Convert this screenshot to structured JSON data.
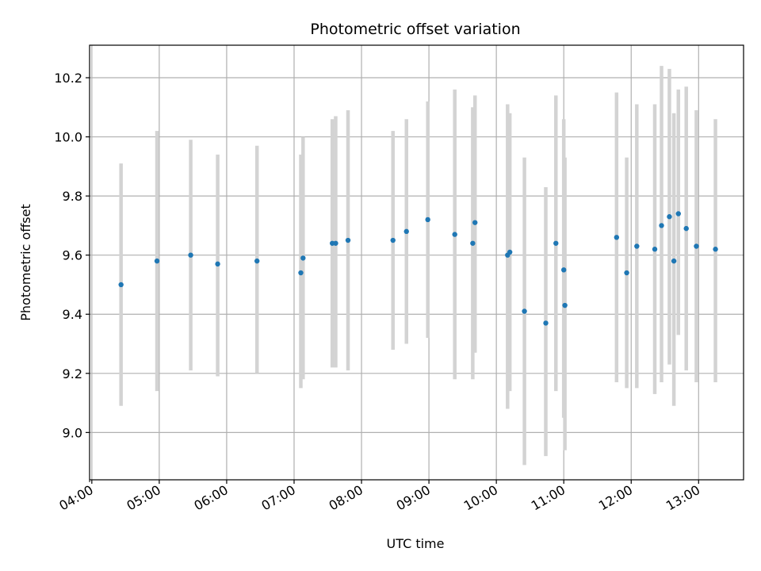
{
  "chart_data": {
    "type": "scatter",
    "title": "Photometric offset variation",
    "xlabel": "UTC time",
    "ylabel": "Photometric offset",
    "xlim": [
      "03:58",
      "13:40"
    ],
    "ylim": [
      8.84,
      10.31
    ],
    "grid": true,
    "legend": "none",
    "x_ticks": [
      "04:00",
      "05:00",
      "06:00",
      "07:00",
      "08:00",
      "09:00",
      "10:00",
      "11:00",
      "12:00",
      "13:00"
    ],
    "y_ticks": [
      9.0,
      9.2,
      9.4,
      9.6,
      9.8,
      10.0,
      10.2
    ],
    "y_tick_labels": [
      "9.0",
      "9.2",
      "9.4",
      "9.6",
      "9.8",
      "10.0",
      "10.2"
    ],
    "colors": {
      "point": "#1f77b4",
      "errorbar": "#d3d3d3",
      "grid": "#b0b0b0"
    },
    "points": [
      {
        "x": "04:26",
        "y": 9.5,
        "err_low": 9.09,
        "err_high": 9.91
      },
      {
        "x": "04:58",
        "y": 9.58,
        "err_low": 9.14,
        "err_high": 10.02
      },
      {
        "x": "05:28",
        "y": 9.6,
        "err_low": 9.21,
        "err_high": 9.99
      },
      {
        "x": "05:52",
        "y": 9.57,
        "err_low": 9.19,
        "err_high": 9.94
      },
      {
        "x": "06:27",
        "y": 9.58,
        "err_low": 9.2,
        "err_high": 9.97
      },
      {
        "x": "07:06",
        "y": 9.54,
        "err_low": 9.15,
        "err_high": 9.94
      },
      {
        "x": "07:08",
        "y": 9.59,
        "err_low": 9.18,
        "err_high": 10.0
      },
      {
        "x": "07:34",
        "y": 9.64,
        "err_low": 9.22,
        "err_high": 10.06
      },
      {
        "x": "07:37",
        "y": 9.64,
        "err_low": 9.22,
        "err_high": 10.07
      },
      {
        "x": "07:48",
        "y": 9.65,
        "err_low": 9.21,
        "err_high": 10.09
      },
      {
        "x": "08:28",
        "y": 9.65,
        "err_low": 9.28,
        "err_high": 10.02
      },
      {
        "x": "08:40",
        "y": 9.68,
        "err_low": 9.3,
        "err_high": 10.06
      },
      {
        "x": "08:59",
        "y": 9.72,
        "err_low": 9.32,
        "err_high": 10.12
      },
      {
        "x": "09:23",
        "y": 9.67,
        "err_low": 9.18,
        "err_high": 10.16
      },
      {
        "x": "09:39",
        "y": 9.64,
        "err_low": 9.18,
        "err_high": 10.1
      },
      {
        "x": "09:41",
        "y": 9.71,
        "err_low": 9.27,
        "err_high": 10.14
      },
      {
        "x": "10:10",
        "y": 9.6,
        "err_low": 9.08,
        "err_high": 10.11
      },
      {
        "x": "10:12",
        "y": 9.61,
        "err_low": 9.14,
        "err_high": 10.08
      },
      {
        "x": "10:25",
        "y": 9.41,
        "err_low": 8.89,
        "err_high": 9.93
      },
      {
        "x": "10:44",
        "y": 9.37,
        "err_low": 8.92,
        "err_high": 9.83
      },
      {
        "x": "10:53",
        "y": 9.64,
        "err_low": 9.14,
        "err_high": 10.14
      },
      {
        "x": "11:00",
        "y": 9.55,
        "err_low": 9.05,
        "err_high": 10.06
      },
      {
        "x": "11:01",
        "y": 9.43,
        "err_low": 8.94,
        "err_high": 9.93
      },
      {
        "x": "11:47",
        "y": 9.66,
        "err_low": 9.17,
        "err_high": 10.15
      },
      {
        "x": "11:56",
        "y": 9.54,
        "err_low": 9.15,
        "err_high": 9.93
      },
      {
        "x": "12:05",
        "y": 9.63,
        "err_low": 9.15,
        "err_high": 10.11
      },
      {
        "x": "12:21",
        "y": 9.62,
        "err_low": 9.13,
        "err_high": 10.11
      },
      {
        "x": "12:27",
        "y": 9.7,
        "err_low": 9.17,
        "err_high": 10.24
      },
      {
        "x": "12:34",
        "y": 9.73,
        "err_low": 9.23,
        "err_high": 10.23
      },
      {
        "x": "12:38",
        "y": 9.58,
        "err_low": 9.09,
        "err_high": 10.08
      },
      {
        "x": "12:42",
        "y": 9.74,
        "err_low": 9.33,
        "err_high": 10.16
      },
      {
        "x": "12:49",
        "y": 9.69,
        "err_low": 9.21,
        "err_high": 10.17
      },
      {
        "x": "12:58",
        "y": 9.63,
        "err_low": 9.17,
        "err_high": 10.09
      },
      {
        "x": "13:15",
        "y": 9.62,
        "err_low": 9.17,
        "err_high": 10.06
      }
    ]
  }
}
